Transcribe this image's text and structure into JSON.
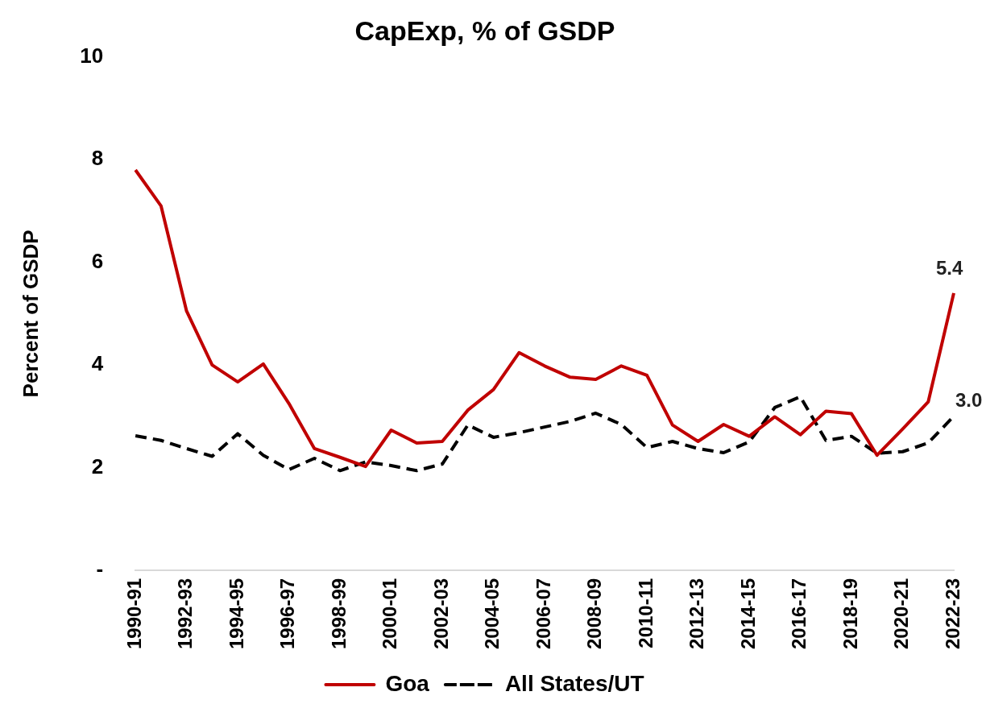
{
  "chart_data": {
    "type": "line",
    "title": "CapExp, % of GSDP",
    "ylabel": "Percent of GSDP",
    "categories": [
      "1990-91",
      null,
      "1992-93",
      null,
      "1994-95",
      null,
      "1996-97",
      null,
      "1998-99",
      null,
      "2000-01",
      null,
      "2002-03",
      null,
      "2004-05",
      null,
      "2006-07",
      null,
      "2008-09",
      null,
      "2010-11",
      null,
      "2012-13",
      null,
      "2014-15",
      null,
      "2016-17",
      null,
      "2018-19",
      null,
      "2020-21",
      null,
      "2022-23"
    ],
    "series": [
      {
        "name": "Goa",
        "color": "#c00000",
        "line_style": "solid",
        "values": [
          7.8,
          7.1,
          5.05,
          4.0,
          3.67,
          4.02,
          3.25,
          2.37,
          2.2,
          2.02,
          2.73,
          2.48,
          2.51,
          3.12,
          3.52,
          4.24,
          3.98,
          3.76,
          3.72,
          3.98,
          3.8,
          2.83,
          2.51,
          2.84,
          2.61,
          2.99,
          2.64,
          3.1,
          3.05,
          2.24,
          2.75,
          3.28,
          5.4
        ],
        "value_labels": [
          null,
          null,
          null,
          null,
          null,
          null,
          null,
          null,
          null,
          null,
          null,
          null,
          null,
          null,
          null,
          null,
          null,
          null,
          null,
          null,
          null,
          null,
          null,
          null,
          null,
          null,
          null,
          null,
          null,
          null,
          null,
          null,
          "5.4"
        ]
      },
      {
        "name": "All States/UT",
        "color": "#000000",
        "line_style": "dashed",
        "values": [
          2.62,
          2.53,
          2.37,
          2.22,
          2.66,
          2.24,
          1.96,
          2.18,
          1.94,
          2.11,
          2.04,
          1.94,
          2.07,
          2.83,
          2.59,
          2.68,
          2.79,
          2.9,
          3.06,
          2.84,
          2.39,
          2.51,
          2.37,
          2.29,
          2.5,
          3.17,
          3.38,
          2.53,
          2.61,
          2.28,
          2.31,
          2.48,
          3.0
        ],
        "value_labels": [
          null,
          null,
          null,
          null,
          null,
          null,
          null,
          null,
          null,
          null,
          null,
          null,
          null,
          null,
          null,
          null,
          null,
          null,
          null,
          null,
          null,
          null,
          null,
          null,
          null,
          null,
          null,
          null,
          null,
          null,
          null,
          null,
          "3.0"
        ]
      }
    ],
    "ylim": [
      0,
      10
    ],
    "yticks": [
      {
        "value": 0,
        "label": "-"
      },
      2,
      4,
      6,
      8,
      10
    ],
    "grid": false,
    "legend": "bottom",
    "marker": "none"
  }
}
